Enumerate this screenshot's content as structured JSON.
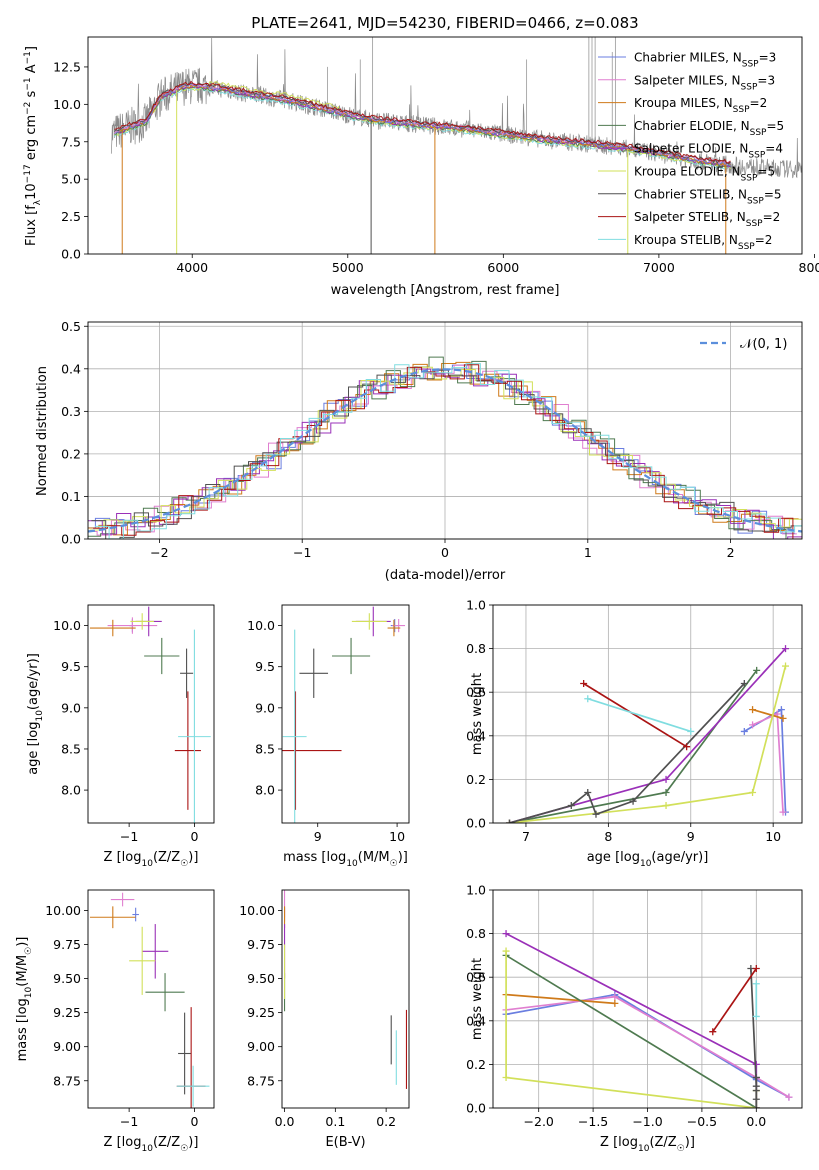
{
  "colors": {
    "ch_miles": "#6a7ee0",
    "sa_miles": "#e07fd0",
    "kr_miles": "#cf7a1a",
    "ch_elodie": "#4f7a50",
    "sa_elodie": "#9a30b8",
    "kr_elodie": "#d2e05a",
    "ch_stelib": "#505050",
    "sa_stelib": "#aa1414",
    "kr_stelib": "#80dde0",
    "data": "#8a8a8a",
    "normal": "#5b8fdc"
  },
  "chart_data": [
    {
      "type": "line",
      "title": "PLATE=2641, MJD=54230, FIBERID=0466, z=0.083",
      "xlabel": "wavelength [Angstrom, rest frame]",
      "ylabel": "Flux [f",
      "ylabel_sub": "λ",
      "ylabel_rest": "10",
      "ylabel_e1": "−17",
      "ylabel_mid": " erg cm",
      "ylabel_e2": "−2",
      "ylabel_mid2": " s",
      "ylabel_e3": "−1",
      "ylabel_mid3": " A",
      "ylabel_e4": "−1",
      "ylabel_end": "]",
      "xlim": [
        3330,
        7920
      ],
      "ylim": [
        0,
        14.5
      ],
      "xticks": [
        "4000",
        "5000",
        "6000",
        "7000",
        "8000"
      ],
      "yticks": [
        "0.0",
        "2.5",
        "5.0",
        "7.5",
        "10.0",
        "12.5"
      ],
      "grid": false,
      "legend_position": "upper-right",
      "series": [
        {
          "name": "Chabrier MILES, N",
          "sub": "SSP",
          "tail": "=3",
          "key": "ch_miles"
        },
        {
          "name": "Salpeter MILES, N",
          "sub": "SSP",
          "tail": "=3",
          "key": "sa_miles"
        },
        {
          "name": "Kroupa MILES, N",
          "sub": "SSP",
          "tail": "=2",
          "key": "kr_miles"
        },
        {
          "name": "Chabrier ELODIE, N",
          "sub": "SSP",
          "tail": "=5",
          "key": "ch_elodie"
        },
        {
          "name": "Salpeter ELODIE, N",
          "sub": "SSP",
          "tail": "=4",
          "key": "sa_elodie"
        },
        {
          "name": "Kroupa ELODIE, N",
          "sub": "SSP",
          "tail": "=5",
          "key": "kr_elodie"
        },
        {
          "name": "Chabrier STELIB, N",
          "sub": "SSP",
          "tail": "=5",
          "key": "ch_stelib"
        },
        {
          "name": "Salpeter STELIB, N",
          "sub": "SSP",
          "tail": "=2",
          "key": "sa_stelib"
        },
        {
          "name": "Kroupa STELIB, N",
          "sub": "SSP",
          "tail": "=2",
          "key": "kr_stelib"
        }
      ],
      "continuum": {
        "x": [
          3480,
          3600,
          3700,
          3800,
          3950,
          4050,
          4200,
          4400,
          4600,
          4800,
          5000,
          5200,
          5500,
          5800,
          6000,
          6300,
          6600,
          6900,
          7200,
          7500,
          7800,
          7920
        ],
        "y": [
          8.0,
          8.5,
          8.8,
          10.5,
          11.2,
          11.2,
          11.0,
          10.6,
          10.3,
          9.8,
          9.3,
          8.9,
          8.6,
          8.3,
          8.0,
          7.6,
          7.3,
          6.9,
          6.3,
          5.9,
          5.7,
          5.6
        ]
      },
      "model_drops": [
        {
          "key": "kr_miles",
          "x": [
            3550,
            5560,
            7430
          ],
          "edge": [
            3330,
            7460
          ]
        },
        {
          "key": "kr_elodie",
          "x": [
            3900,
            6800
          ]
        },
        {
          "key": "ch_stelib",
          "x": [
            5150
          ]
        }
      ]
    },
    {
      "type": "histogram",
      "xlabel": "(data-model)/error",
      "ylabel": "Normed distribution",
      "xlim": [
        -2.5,
        2.5
      ],
      "ylim": [
        0,
        0.51
      ],
      "xticks": [
        "−2",
        "−1",
        "0",
        "1",
        "2"
      ],
      "yticks": [
        "0.0",
        "0.1",
        "0.2",
        "0.3",
        "0.4",
        "0.5"
      ],
      "grid": true,
      "legend_position": "upper-right",
      "normal_label": "𝒩(0, 1)",
      "bin_width": 0.1
    },
    {
      "type": "errorbar",
      "xlabel": "Z [log",
      "xlabel_sub": "10",
      "xlabel_end": "(Z/Z",
      "xlabel_sun": "☉",
      "xlabel_close": ")]",
      "ylabel": "age  [log",
      "ylabel_sub": "10",
      "ylabel_end": "(age/yr)]",
      "xlim": [
        -1.63,
        0.3
      ],
      "ylim": [
        7.6,
        10.25
      ],
      "xticks": [
        "−1",
        "0"
      ],
      "yticks": [
        "8.0",
        "8.5",
        "9.0",
        "9.5",
        "10.0"
      ],
      "points": [
        {
          "key": "ch_miles",
          "x": -0.95,
          "xerr": 0.05,
          "y": 10.0,
          "yerr": 0.08
        },
        {
          "key": "sa_miles",
          "x": -0.95,
          "xerr": 0.38,
          "y": 10.0,
          "yerr": 0.1
        },
        {
          "key": "kr_miles",
          "x": -1.25,
          "xerr": 0.35,
          "y": 9.97,
          "yerr": 0.1
        },
        {
          "key": "ch_elodie",
          "x": -0.5,
          "xerr": 0.27,
          "y": 9.63,
          "yerr": 0.22
        },
        {
          "key": "sa_elodie",
          "x": -0.7,
          "xerr": 0.2,
          "y": 10.05,
          "yerr": 0.18
        },
        {
          "key": "kr_elodie",
          "x": -0.8,
          "xerr": 0.18,
          "y": 10.05,
          "yerr": 0.1
        },
        {
          "key": "ch_stelib",
          "x": -0.12,
          "xerr": 0.1,
          "y": 9.42,
          "yerr": 0.3
        },
        {
          "key": "sa_stelib",
          "x": -0.1,
          "xerr": 0.2,
          "y": 8.48,
          "yerr": 0.72
        },
        {
          "key": "kr_stelib",
          "x": 0.0,
          "xerr": 0.25,
          "y": 8.65,
          "yerr": 1.3
        }
      ]
    },
    {
      "type": "errorbar",
      "xlabel": "mass [log",
      "xlabel_sub": "10",
      "xlabel_end": "(M/M",
      "xlabel_sun": "☉",
      "xlabel_close": ")]",
      "xlim": [
        8.55,
        10.15
      ],
      "ylim": [
        7.6,
        10.25
      ],
      "xticks": [
        "9",
        "10"
      ],
      "yticks": [
        "8.0",
        "8.5",
        "9.0",
        "9.5",
        "10.0"
      ],
      "points": [
        {
          "key": "ch_miles",
          "x": 9.97,
          "xerr": 0.05,
          "y": 10.0,
          "yerr": 0.08
        },
        {
          "key": "sa_miles",
          "x": 10.02,
          "xerr": 0.08,
          "y": 10.0,
          "yerr": 0.08
        },
        {
          "key": "kr_miles",
          "x": 9.96,
          "xerr": 0.08,
          "y": 9.97,
          "yerr": 0.1
        },
        {
          "key": "ch_elodie",
          "x": 9.42,
          "xerr": 0.24,
          "y": 9.63,
          "yerr": 0.22
        },
        {
          "key": "sa_elodie",
          "x": 9.7,
          "xerr": 0.22,
          "y": 10.05,
          "yerr": 0.18
        },
        {
          "key": "kr_elodie",
          "x": 9.65,
          "xerr": 0.22,
          "y": 10.05,
          "yerr": 0.1
        },
        {
          "key": "ch_stelib",
          "x": 8.95,
          "xerr": 0.18,
          "y": 9.42,
          "yerr": 0.3
        },
        {
          "key": "sa_stelib",
          "x": 8.72,
          "xerr": 0.58,
          "y": 8.48,
          "yerr": 0.72
        },
        {
          "key": "kr_stelib",
          "x": 8.71,
          "xerr": 0.15,
          "y": 8.65,
          "yerr": 1.3
        }
      ]
    },
    {
      "type": "line",
      "xlabel": "age  [log",
      "xlabel_sub": "10",
      "xlabel_end": "(age/yr)]",
      "ylabel": "mass weight",
      "xlim": [
        6.6,
        10.35
      ],
      "ylim": [
        0,
        1
      ],
      "xticks": [
        "7",
        "8",
        "9",
        "10"
      ],
      "yticks": [
        "0.0",
        "0.2",
        "0.4",
        "0.6",
        "0.8",
        "1.0"
      ],
      "grid": true,
      "series": [
        {
          "key": "ch_miles",
          "x": [
            9.65,
            10.1,
            10.15
          ],
          "y": [
            0.42,
            0.52,
            0.05
          ]
        },
        {
          "key": "sa_miles",
          "x": [
            9.75,
            10.05,
            10.12
          ],
          "y": [
            0.45,
            0.5,
            0.05
          ]
        },
        {
          "key": "kr_miles",
          "x": [
            9.75,
            10.12
          ],
          "y": [
            0.52,
            0.48
          ]
        },
        {
          "key": "ch_elodie",
          "x": [
            6.8,
            8.7,
            9.8
          ],
          "y": [
            0.0,
            0.14,
            0.7
          ]
        },
        {
          "key": "sa_elodie",
          "x": [
            6.8,
            8.7,
            10.15
          ],
          "y": [
            0.0,
            0.2,
            0.8
          ]
        },
        {
          "key": "kr_elodie",
          "x": [
            6.8,
            8.7,
            9.75,
            10.15
          ],
          "y": [
            0.0,
            0.08,
            0.14,
            0.72
          ]
        },
        {
          "key": "ch_stelib",
          "x": [
            6.8,
            7.55,
            7.75,
            7.85,
            8.3,
            9.65
          ],
          "y": [
            0.0,
            0.08,
            0.14,
            0.04,
            0.1,
            0.64
          ]
        },
        {
          "key": "sa_stelib",
          "x": [
            7.7,
            8.95
          ],
          "y": [
            0.64,
            0.35
          ]
        },
        {
          "key": "kr_stelib",
          "x": [
            7.75,
            9.0
          ],
          "y": [
            0.57,
            0.42
          ]
        }
      ]
    },
    {
      "type": "errorbar",
      "xlabel": "Z [log",
      "xlabel_sub": "10",
      "xlabel_end": "(Z/Z",
      "xlabel_sun": "☉",
      "xlabel_close": ")]",
      "ylabel": "mass [log",
      "ylabel_sub": "10",
      "ylabel_end": "(M/M",
      "ylabel_sun": "☉",
      "ylabel_close": ")]",
      "xlim": [
        -1.63,
        0.3
      ],
      "ylim": [
        8.55,
        10.15
      ],
      "xticks": [
        "−1",
        "0"
      ],
      "yticks": [
        "8.75",
        "9.00",
        "9.25",
        "9.50",
        "9.75",
        "10.00"
      ],
      "points": [
        {
          "key": "ch_miles",
          "x": -0.9,
          "xerr": 0.05,
          "y": 9.97,
          "yerr": 0.05
        },
        {
          "key": "sa_miles",
          "x": -1.1,
          "xerr": 0.18,
          "y": 10.08,
          "yerr": 0.05
        },
        {
          "key": "kr_miles",
          "x": -1.25,
          "xerr": 0.35,
          "y": 9.95,
          "yerr": 0.08
        },
        {
          "key": "ch_elodie",
          "x": -0.45,
          "xerr": 0.3,
          "y": 9.4,
          "yerr": 0.14
        },
        {
          "key": "sa_elodie",
          "x": -0.6,
          "xerr": 0.2,
          "y": 9.7,
          "yerr": 0.2
        },
        {
          "key": "kr_elodie",
          "x": -0.8,
          "xerr": 0.2,
          "y": 9.63,
          "yerr": 0.25
        },
        {
          "key": "ch_stelib",
          "x": -0.15,
          "xerr": 0.1,
          "y": 8.95,
          "yerr": 0.3
        },
        {
          "key": "sa_stelib",
          "x": -0.05,
          "xerr": 0.22,
          "y": 8.71,
          "yerr": 0.58
        },
        {
          "key": "kr_stelib",
          "x": -0.02,
          "xerr": 0.25,
          "y": 8.71,
          "yerr": 0.15
        }
      ]
    },
    {
      "type": "errorbar",
      "xlabel": "E(B-V)",
      "xlim": [
        -0.005,
        0.245
      ],
      "ylim": [
        8.55,
        10.15
      ],
      "xticks": [
        "0.0",
        "0.1",
        "0.2"
      ],
      "yticks": [
        "8.75",
        "9.00",
        "9.25",
        "9.50",
        "9.75",
        "10.00"
      ],
      "points": [
        {
          "key": "ch_miles",
          "x": 0.0,
          "xerr": 0,
          "y": 9.97,
          "yerr": 0.05
        },
        {
          "key": "sa_miles",
          "x": 0.0,
          "xerr": 0,
          "y": 10.05,
          "yerr": 0.1
        },
        {
          "key": "kr_miles",
          "x": 0.0,
          "xerr": 0,
          "y": 9.95,
          "yerr": 0.08
        },
        {
          "key": "ch_elodie",
          "x": 0.0,
          "xerr": 0,
          "y": 9.4,
          "yerr": 0.14
        },
        {
          "key": "sa_elodie",
          "x": 0.0,
          "xerr": 0,
          "y": 9.7,
          "yerr": 0.2
        },
        {
          "key": "kr_elodie",
          "x": 0.0,
          "xerr": 0,
          "y": 9.55,
          "yerr": 0.2
        },
        {
          "key": "ch_stelib",
          "x": 0.21,
          "xerr": 0,
          "y": 9.05,
          "yerr": 0.18
        },
        {
          "key": "sa_stelib",
          "x": 0.24,
          "xerr": 0,
          "y": 8.98,
          "yerr": 0.29
        },
        {
          "key": "kr_stelib",
          "x": 0.22,
          "xerr": 0,
          "y": 8.92,
          "yerr": 0.2
        }
      ]
    },
    {
      "type": "line",
      "xlabel": "Z [log",
      "xlabel_sub": "10",
      "xlabel_end": "(Z/Z",
      "xlabel_sun": "☉",
      "xlabel_close": ")]",
      "ylabel": "mass weight",
      "xlim": [
        -2.42,
        0.42
      ],
      "ylim": [
        0,
        1
      ],
      "xticks": [
        "−2.0",
        "−1.5",
        "−1.0",
        "−0.5",
        "0.0"
      ],
      "yticks": [
        "0.0",
        "0.2",
        "0.4",
        "0.6",
        "0.8",
        "1.0"
      ],
      "grid": true,
      "series": [
        {
          "key": "ch_miles",
          "x": [
            -2.3,
            -1.3,
            0.0,
            0.3
          ],
          "y": [
            0.43,
            0.52,
            0.13,
            0.05
          ]
        },
        {
          "key": "sa_miles",
          "x": [
            -2.3,
            -1.3,
            0.0,
            0.3
          ],
          "y": [
            0.45,
            0.51,
            0.14,
            0.05
          ]
        },
        {
          "key": "kr_miles",
          "x": [
            -2.3,
            -1.3
          ],
          "y": [
            0.52,
            0.48
          ]
        },
        {
          "key": "ch_elodie",
          "x": [
            -2.3,
            0.0,
            0.0
          ],
          "y": [
            0.7,
            0.0,
            0.14
          ]
        },
        {
          "key": "sa_elodie",
          "x": [
            -2.3,
            0.0,
            0.0
          ],
          "y": [
            0.8,
            0.2,
            0.0
          ]
        },
        {
          "key": "kr_elodie",
          "x": [
            -2.3,
            -2.3,
            0.0,
            0.0
          ],
          "y": [
            0.72,
            0.14,
            0.0,
            0.08
          ]
        },
        {
          "key": "ch_stelib",
          "x": [
            -0.05,
            0.0,
            0.0,
            0.0,
            0.0,
            0.0
          ],
          "y": [
            0.64,
            0.1,
            0.04,
            0.14,
            0.08,
            0.0
          ]
        },
        {
          "key": "sa_stelib",
          "x": [
            -0.4,
            0.0
          ],
          "y": [
            0.35,
            0.64
          ]
        },
        {
          "key": "kr_stelib",
          "x": [
            0.0,
            0.0
          ],
          "y": [
            0.42,
            0.57
          ]
        }
      ]
    }
  ]
}
